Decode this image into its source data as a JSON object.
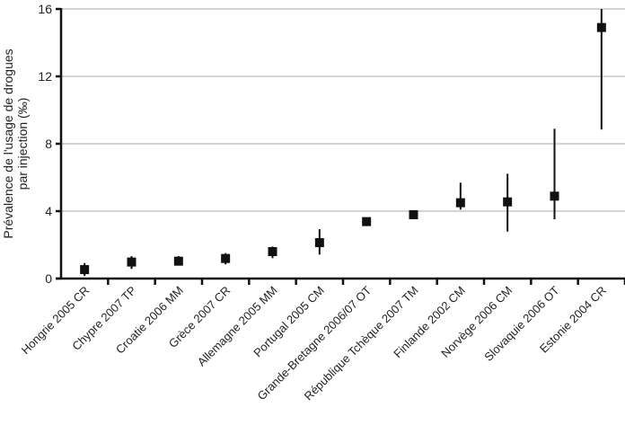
{
  "chart_data": {
    "type": "scatter",
    "title": "",
    "ylabel_line1": "Prévalence de l'usage de drogues",
    "ylabel_line2": "par injection (‰)",
    "xlabel": "",
    "ylim": [
      0,
      16
    ],
    "yticks": [
      "0",
      "4",
      "8",
      "12",
      "16"
    ],
    "grid": "horizontal",
    "categories": [
      "Hongrie 2005 CR",
      "Chypre 2007 TP",
      "Croatie 2006 MM",
      "Grèce 2007 CR",
      "Allemagne  2005 MM",
      "Portugal 2005 CM",
      "Grande-Bretagne 2006/07 OT",
      "République Tchèque 2007 TM",
      "Finlande  2002 CM",
      "Norvège  2006 CM",
      "Slovaquie 2006 OT",
      "Estonie  2004 CR"
    ],
    "values": [
      0.53,
      0.98,
      1.03,
      1.19,
      1.6,
      2.13,
      3.38,
      3.79,
      4.5,
      4.55,
      4.89,
      14.9
    ],
    "lower": [
      0.15,
      0.57,
      0.8,
      0.84,
      1.21,
      1.42,
      3.3,
      3.7,
      4.09,
      2.79,
      3.52,
      8.85
    ],
    "upper": [
      0.92,
      1.33,
      1.33,
      1.51,
      1.9,
      2.93,
      3.55,
      3.95,
      5.69,
      6.22,
      8.89,
      16
    ],
    "marker_color": "#111111",
    "grid_color": "#aaaaaa"
  }
}
